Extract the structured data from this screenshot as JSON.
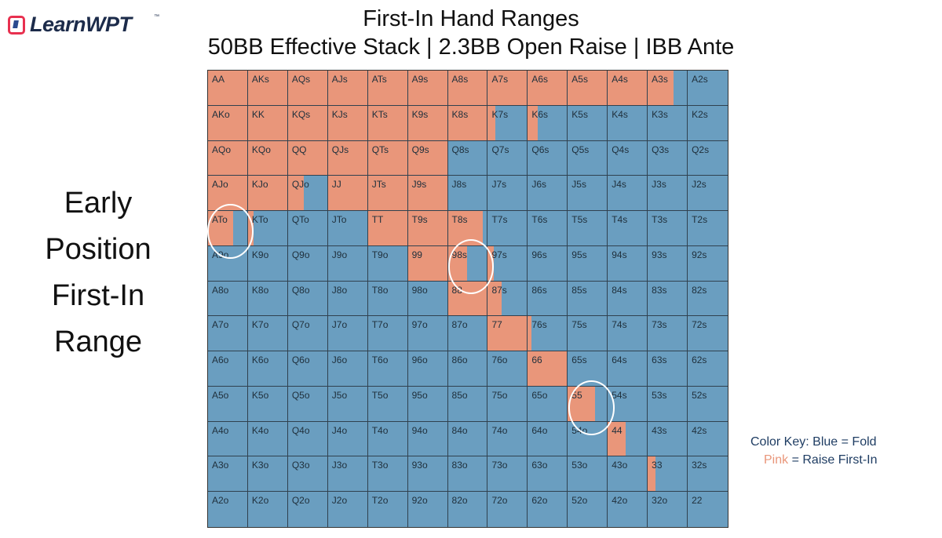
{
  "header": {
    "logo_text": "LearnWPT",
    "logo_tm": "™",
    "title_line1": "First-In Hand Ranges",
    "title_line2": "50BB Effective Stack | 2.3BB Open Raise | IBB Ante"
  },
  "side_title": [
    "Early",
    "Position",
    "First-In",
    "Range"
  ],
  "color_key": {
    "prefix": "Color Key:",
    "blue": "Blue = Fold",
    "pink_word": "Pink",
    "pink_rest": "= Raise First-In"
  },
  "colors": {
    "raise": "#e9967a",
    "fold": "#6a9ec0",
    "raise_name": "Pink",
    "fold_name": "Blue"
  },
  "chart_data": {
    "type": "heatmap",
    "title": "First-In Hand Ranges",
    "subtitle": "50BB Effective Stack | 2.3BB Open Raise | IBB Ante",
    "rows": [
      [
        "AA",
        "AKs",
        "AQs",
        "AJs",
        "ATs",
        "A9s",
        "A8s",
        "A7s",
        "A6s",
        "A5s",
        "A4s",
        "A3s",
        "A2s"
      ],
      [
        "AKo",
        "KK",
        "KQs",
        "KJs",
        "KTs",
        "K9s",
        "K8s",
        "K7s",
        "K6s",
        "K5s",
        "K4s",
        "K3s",
        "K2s"
      ],
      [
        "AQo",
        "KQo",
        "QQ",
        "QJs",
        "QTs",
        "Q9s",
        "Q8s",
        "Q7s",
        "Q6s",
        "Q5s",
        "Q4s",
        "Q3s",
        "Q2s"
      ],
      [
        "AJo",
        "KJo",
        "QJo",
        "JJ",
        "JTs",
        "J9s",
        "J8s",
        "J7s",
        "J6s",
        "J5s",
        "J4s",
        "J3s",
        "J2s"
      ],
      [
        "ATo",
        "KTo",
        "QTo",
        "JTo",
        "TT",
        "T9s",
        "T8s",
        "T7s",
        "T6s",
        "T5s",
        "T4s",
        "T3s",
        "T2s"
      ],
      [
        "A9o",
        "K9o",
        "Q9o",
        "J9o",
        "T9o",
        "99",
        "98s",
        "97s",
        "96s",
        "95s",
        "94s",
        "93s",
        "92s"
      ],
      [
        "A8o",
        "K8o",
        "Q8o",
        "J8o",
        "T8o",
        "98o",
        "88",
        "87s",
        "86s",
        "85s",
        "84s",
        "83s",
        "82s"
      ],
      [
        "A7o",
        "K7o",
        "Q7o",
        "J7o",
        "T7o",
        "97o",
        "87o",
        "77",
        "76s",
        "75s",
        "74s",
        "73s",
        "72s"
      ],
      [
        "A6o",
        "K6o",
        "Q6o",
        "J6o",
        "T6o",
        "96o",
        "86o",
        "76o",
        "66",
        "65s",
        "64s",
        "63s",
        "62s"
      ],
      [
        "A5o",
        "K5o",
        "Q5o",
        "J5o",
        "T5o",
        "95o",
        "85o",
        "75o",
        "65o",
        "55",
        "54s",
        "53s",
        "52s"
      ],
      [
        "A4o",
        "K4o",
        "Q4o",
        "J4o",
        "T4o",
        "94o",
        "84o",
        "74o",
        "64o",
        "54o",
        "44",
        "43s",
        "42s"
      ],
      [
        "A3o",
        "K3o",
        "Q3o",
        "J3o",
        "T3o",
        "93o",
        "83o",
        "73o",
        "63o",
        "53o",
        "43o",
        "33",
        "32s"
      ],
      [
        "A2o",
        "K2o",
        "Q2o",
        "J2o",
        "T2o",
        "92o",
        "82o",
        "72o",
        "62o",
        "52o",
        "42o",
        "32o",
        "22"
      ]
    ],
    "raise_fraction": [
      [
        1,
        1,
        1,
        1,
        1,
        1,
        1,
        1,
        1,
        1,
        1,
        0.65,
        0
      ],
      [
        1,
        1,
        1,
        1,
        1,
        1,
        1,
        0.2,
        0.25,
        0,
        0,
        0,
        0
      ],
      [
        1,
        1,
        1,
        1,
        1,
        1,
        0,
        0,
        0,
        0,
        0,
        0,
        0
      ],
      [
        1,
        1,
        0.4,
        1,
        1,
        1,
        0,
        0,
        0,
        0,
        0,
        0,
        0
      ],
      [
        0.65,
        0.15,
        0,
        0,
        1,
        1,
        0.9,
        0,
        0,
        0,
        0,
        0,
        0
      ],
      [
        0,
        0,
        0,
        0,
        0,
        1,
        0.5,
        0.15,
        0,
        0,
        0,
        0,
        0
      ],
      [
        0,
        0,
        0,
        0,
        0,
        0,
        1,
        0.35,
        0,
        0,
        0,
        0,
        0
      ],
      [
        0,
        0,
        0,
        0,
        0,
        0,
        0,
        1,
        0.1,
        0,
        0,
        0,
        0
      ],
      [
        0,
        0,
        0,
        0,
        0,
        0,
        0,
        0,
        1,
        0,
        0,
        0,
        0
      ],
      [
        0,
        0,
        0,
        0,
        0,
        0,
        0,
        0,
        0,
        0.7,
        0,
        0,
        0
      ],
      [
        0,
        0,
        0,
        0,
        0,
        0,
        0,
        0,
        0,
        0,
        0.45,
        0,
        0
      ],
      [
        0,
        0,
        0,
        0,
        0,
        0,
        0,
        0,
        0,
        0,
        0,
        0.2,
        0
      ],
      [
        0,
        0,
        0,
        0,
        0,
        0,
        0,
        0,
        0,
        0,
        0,
        0,
        0
      ]
    ],
    "circled_hands": [
      "ATo",
      "98s",
      "55"
    ],
    "legend": [
      "Blue = Fold",
      "Pink = Raise First-In"
    ],
    "legend_position": "bottom-right"
  }
}
